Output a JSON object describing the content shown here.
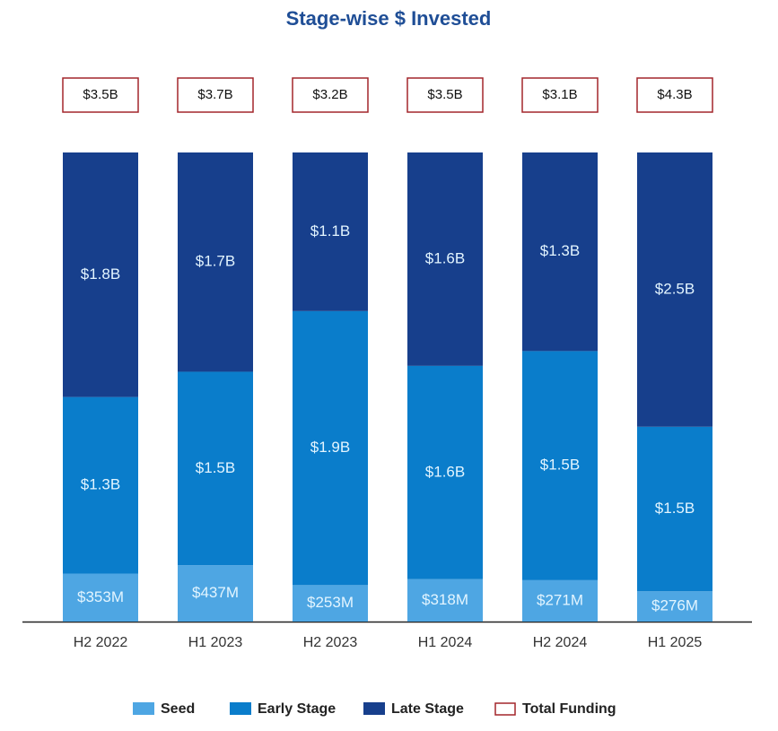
{
  "chart_data": {
    "type": "stacked-bar-100",
    "title": "Stage-wise $ Invested",
    "categories": [
      "H2 2022",
      "H1 2023",
      "H2 2023",
      "H1 2024",
      "H2 2024",
      "H1 2025"
    ],
    "series": [
      {
        "name": "Seed",
        "color": "#4ea6e3",
        "values": [
          353,
          437,
          253,
          318,
          271,
          276
        ],
        "value_labels": [
          "$353M",
          "$437M",
          "$253M",
          "$318M",
          "$271M",
          "$276M"
        ]
      },
      {
        "name": "Early Stage",
        "color": "#0a7dcb",
        "values": [
          1300,
          1500,
          1900,
          1600,
          1500,
          1500
        ],
        "value_labels": [
          "$1.3B",
          "$1.5B",
          "$1.9B",
          "$1.6B",
          "$1.5B",
          "$1.5B"
        ]
      },
      {
        "name": "Late Stage",
        "color": "#173f8c",
        "values": [
          1800,
          1700,
          1100,
          1600,
          1300,
          2500
        ],
        "value_labels": [
          "$1.8B",
          "$1.7B",
          "$1.1B",
          "$1.6B",
          "$1.3B",
          "$2.5B"
        ]
      }
    ],
    "totals": {
      "name": "Total Funding",
      "color": "#a3262b",
      "values": [
        3500,
        3700,
        3200,
        3500,
        3100,
        4300
      ],
      "value_labels": [
        "$3.5B",
        "$3.7B",
        "$3.2B",
        "$3.5B",
        "$3.1B",
        "$4.3B"
      ]
    }
  }
}
